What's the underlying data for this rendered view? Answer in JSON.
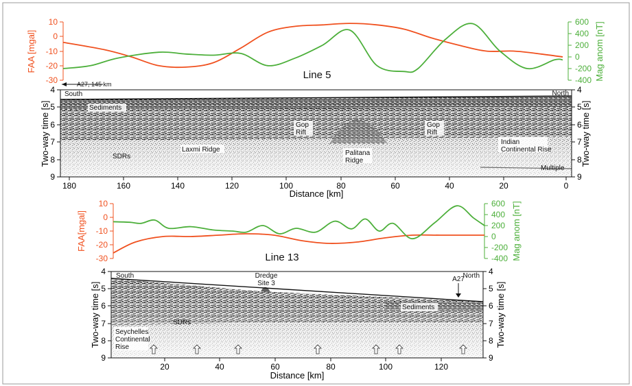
{
  "colors": {
    "faa": "#f0501e",
    "mag": "#4caf3a",
    "axis": "#222222"
  },
  "panels": [
    {
      "id": "line5",
      "title": "Line 5",
      "faa_label": "FAA [mgal]",
      "mag_label": "Mag anom [nT]",
      "faa_ticks": [
        "10",
        "0",
        "-10",
        "-20",
        "-30"
      ],
      "mag_ticks": [
        "600",
        "400",
        "200",
        "0",
        "-200",
        "-400"
      ],
      "time_label": "Two-way time [s]",
      "time_ticks": [
        "4",
        "5",
        "6",
        "7",
        "8",
        "9"
      ],
      "distance_label": "Distance [km]",
      "distance_ticks": [
        "180",
        "160",
        "140",
        "120",
        "100",
        "80",
        "60",
        "40",
        "20",
        "0"
      ],
      "south": "South",
      "north": "North",
      "marker": "A27, 145 km",
      "features": [
        "Sediments",
        "SDRs",
        "Laxmi Ridge",
        "Gop Rift",
        "Gop Rift",
        "Palitana Ridge",
        "Indian Continental Rise",
        "Multiple"
      ]
    },
    {
      "id": "line13",
      "title": "Line 13",
      "faa_label": "FAA[mgal]",
      "mag_label": "Mag anom [nT]",
      "faa_ticks": [
        "10",
        "0",
        "-10",
        "-20",
        "-30"
      ],
      "mag_ticks": [
        "600",
        "400",
        "200",
        "0",
        "-200",
        "-400"
      ],
      "time_label": "Two-way time [s]",
      "time_ticks": [
        "4",
        "5",
        "6",
        "7",
        "8",
        "9"
      ],
      "distance_label": "Distance [km]",
      "distance_ticks": [
        "20",
        "40",
        "60",
        "80",
        "100",
        "120"
      ],
      "south": "South",
      "north": "North",
      "marker": "A27",
      "dredge": "Dredge Site 3",
      "features": [
        "SDRs",
        "Sediments",
        "Seychelles Continental Rise"
      ]
    }
  ],
  "chart_data": [
    {
      "type": "line",
      "panel": "Line 5",
      "x_unit": "Distance [km]",
      "xlim": [
        185,
        0
      ],
      "series": [
        {
          "name": "FAA [mgal]",
          "ylim": [
            -30,
            10
          ],
          "x": [
            185,
            170,
            160,
            150,
            140,
            130,
            120,
            110,
            100,
            90,
            80,
            70,
            60,
            50,
            40,
            30,
            20,
            10,
            2
          ],
          "values": [
            -4,
            -9,
            -14,
            -20,
            -21,
            -18,
            -8,
            3,
            7,
            8,
            9,
            8,
            5,
            -1,
            -6,
            -10,
            -10,
            -12,
            -14
          ]
        },
        {
          "name": "Mag anom [nT]",
          "ylim": [
            -400,
            600
          ],
          "x": [
            185,
            175,
            165,
            150,
            140,
            130,
            120,
            110,
            100,
            90,
            80,
            70,
            60,
            55,
            45,
            35,
            25,
            15,
            5,
            2
          ],
          "values": [
            -200,
            -150,
            -20,
            80,
            50,
            30,
            60,
            -150,
            -20,
            200,
            460,
            -150,
            -250,
            -200,
            300,
            570,
            100,
            -200,
            -50,
            -50
          ]
        }
      ]
    },
    {
      "type": "line",
      "panel": "Line 13",
      "x_unit": "Distance [km]",
      "xlim": [
        2,
        136
      ],
      "series": [
        {
          "name": "FAA[mgal]",
          "ylim": [
            -30,
            10
          ],
          "x": [
            2,
            10,
            20,
            30,
            40,
            50,
            60,
            70,
            80,
            90,
            100,
            110,
            120,
            130,
            136
          ],
          "values": [
            -26,
            -18,
            -14,
            -14,
            -13,
            -12,
            -13,
            -17,
            -19,
            -18,
            -15,
            -13,
            -13,
            -13,
            -13
          ]
        },
        {
          "name": "Mag anom [nT]",
          "ylim": [
            -400,
            600
          ],
          "x": [
            2,
            8,
            12,
            17,
            22,
            30,
            38,
            45,
            50,
            56,
            62,
            68,
            75,
            82,
            88,
            93,
            98,
            103,
            110,
            118,
            126,
            132,
            136
          ],
          "values": [
            270,
            260,
            240,
            300,
            150,
            180,
            120,
            100,
            80,
            200,
            50,
            150,
            80,
            280,
            140,
            320,
            100,
            240,
            -40,
            250,
            560,
            340,
            200
          ]
        }
      ]
    }
  ]
}
